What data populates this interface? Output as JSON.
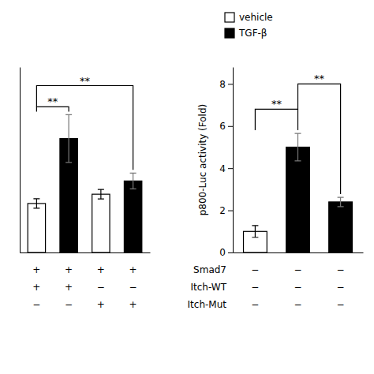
{
  "chart_data": [
    {
      "type": "bar",
      "values": [
        1.85,
        4.3,
        2.2,
        2.7
      ],
      "errors": [
        0.18,
        0.9,
        0.18,
        0.3
      ],
      "colors": [
        "white",
        "black",
        "white",
        "black"
      ],
      "ylim": [
        0,
        7.0
      ],
      "tick_labels": false,
      "conditions": [
        {
          "signs": [
            "+",
            "+",
            "+",
            "+"
          ]
        },
        {
          "signs": [
            "+",
            "+",
            "−",
            "−"
          ]
        },
        {
          "signs": [
            "−",
            "−",
            "+",
            "+"
          ]
        }
      ],
      "annotations": [
        {
          "text": "**",
          "from": 0,
          "to": 1,
          "y": 5.5
        },
        {
          "text": "**",
          "from": 0,
          "to": 3,
          "y": 6.3
        }
      ]
    },
    {
      "type": "bar",
      "values": [
        1.0,
        5.0,
        2.4
      ],
      "errors": [
        0.28,
        0.65,
        0.22
      ],
      "colors": [
        "white",
        "black",
        "black"
      ],
      "ylim": [
        0,
        8.8
      ],
      "yticks": [
        0,
        2,
        4,
        6,
        8
      ],
      "ylabel": "p800-Luc activity (Fold)",
      "tick_labels": "y",
      "conditions": [
        {
          "label": "Smad7",
          "signs": [
            "−",
            "−",
            "−"
          ]
        },
        {
          "label": "Itch-WT",
          "signs": [
            "−",
            "−",
            "−"
          ]
        },
        {
          "label": "Itch-Mut",
          "signs": [
            "−",
            "−",
            "−"
          ]
        }
      ],
      "annotations": [
        {
          "text": "**",
          "from": 0,
          "to": 1,
          "y": 6.8
        },
        {
          "text": "**",
          "from": 1,
          "to": 2,
          "y": 8.0
        }
      ],
      "legend_labels": [
        "vehicle",
        "TGF-β"
      ],
      "legend_colors": [
        "white",
        "black"
      ]
    }
  ]
}
